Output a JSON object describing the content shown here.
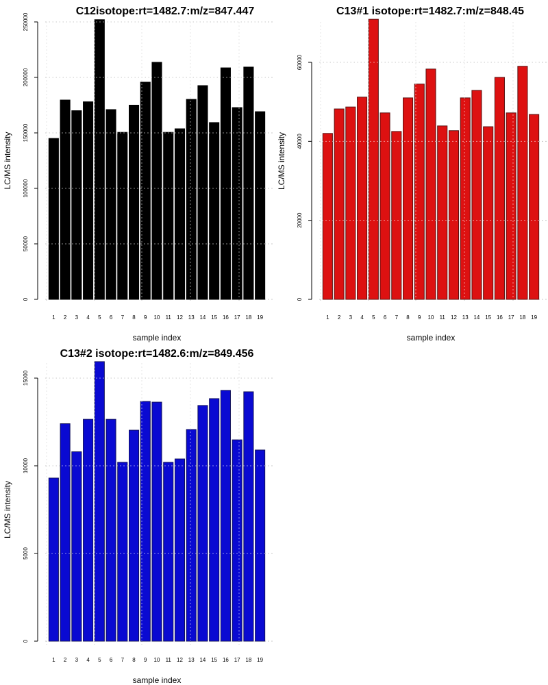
{
  "chart_data": [
    {
      "type": "bar",
      "title": "C12isotope:rt=1482.7:m/z=847.447",
      "xlabel": "sample index",
      "ylabel": "LC/MS intensity",
      "categories": [
        "1",
        "2",
        "3",
        "4",
        "5",
        "6",
        "7",
        "8",
        "9",
        "10",
        "11",
        "12",
        "13",
        "14",
        "15",
        "16",
        "17",
        "18",
        "19"
      ],
      "values": [
        145000,
        179600,
        170000,
        178000,
        252000,
        171000,
        150500,
        175000,
        195700,
        213600,
        150500,
        153700,
        180200,
        192600,
        159300,
        208600,
        172800,
        209300,
        169100
      ],
      "ylim": [
        0,
        250000
      ],
      "yticks": [
        0,
        50000,
        100000,
        150000,
        200000,
        250000
      ],
      "ytick_labels": [
        "0",
        "50000",
        "100000",
        "150000",
        "200000",
        "250000"
      ],
      "grid": true,
      "bar_color": "#000000",
      "border_color": "#000000"
    },
    {
      "type": "bar",
      "title": "C13#1 isotope:rt=1482.7:m/z=848.45",
      "xlabel": "sample index",
      "ylabel": "LC/MS intensity",
      "categories": [
        "1",
        "2",
        "3",
        "4",
        "5",
        "6",
        "7",
        "8",
        "9",
        "10",
        "11",
        "12",
        "13",
        "14",
        "15",
        "16",
        "17",
        "18",
        "19"
      ],
      "values": [
        42000,
        48200,
        48700,
        51200,
        70900,
        47200,
        42500,
        51000,
        54500,
        58300,
        43900,
        42700,
        51000,
        52900,
        43700,
        56200,
        47200,
        59000,
        46800
      ],
      "ylim": [
        0,
        60000
      ],
      "yticks": [
        0,
        20000,
        40000,
        60000
      ],
      "ytick_labels": [
        "0",
        "20000",
        "40000",
        "60000"
      ],
      "grid": true,
      "bar_color": "#dd1111",
      "border_color": "#5a1010"
    },
    {
      "type": "bar",
      "title": "C13#2 isotope:rt=1482.6:m/z=849.456",
      "xlabel": "sample index",
      "ylabel": "LC/MS intensity",
      "categories": [
        "1",
        "2",
        "3",
        "4",
        "5",
        "6",
        "7",
        "8",
        "9",
        "10",
        "11",
        "12",
        "13",
        "14",
        "15",
        "16",
        "17",
        "18",
        "19"
      ],
      "values": [
        9300,
        12400,
        10800,
        12650,
        15940,
        12650,
        10200,
        12030,
        13670,
        13630,
        10200,
        10390,
        12070,
        13440,
        13830,
        14300,
        11480,
        14220,
        10900
      ],
      "ylim": [
        0,
        15000
      ],
      "yticks": [
        0,
        5000,
        10000,
        15000
      ],
      "ytick_labels": [
        "0",
        "5000",
        "10000",
        "15000"
      ],
      "grid": true,
      "bar_color": "#0a0ad2",
      "border_color": "#10105a"
    }
  ]
}
